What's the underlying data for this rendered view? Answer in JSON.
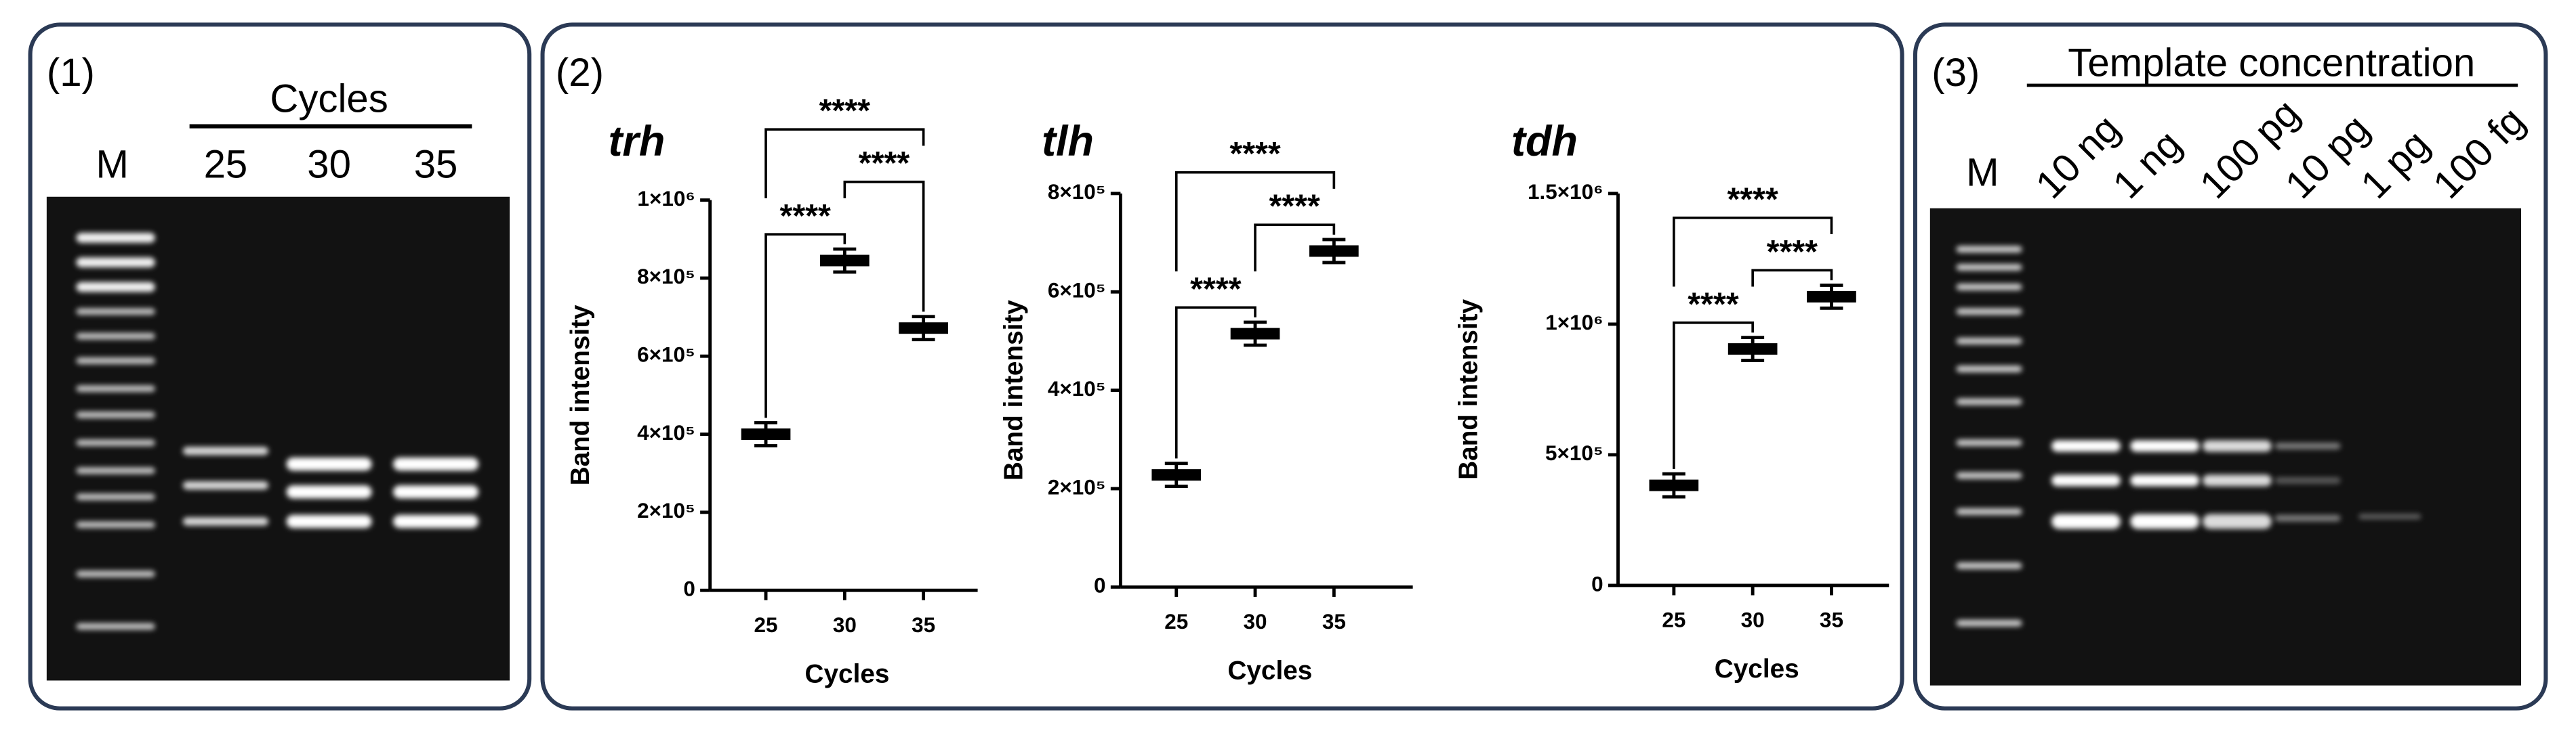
{
  "panels": [
    {
      "label": "(1)",
      "header": "Cycles",
      "lanes": [
        "M",
        "25",
        "30",
        "35"
      ]
    },
    {
      "label": "(2)"
    },
    {
      "label": "(3)",
      "header": "Template concentration",
      "lanes": [
        "M",
        "10 ng",
        "1 ng",
        "100 pg",
        "10 pg",
        "1 pg",
        "100 fg"
      ]
    }
  ],
  "chart_data": [
    {
      "type": "box",
      "title": "trh",
      "x_label": "Cycles",
      "y_label": "Band intensity",
      "categories": [
        "25",
        "30",
        "35"
      ],
      "values": [
        400000,
        845000,
        672000
      ],
      "color": "#000000",
      "ylim": [
        0,
        1000000
      ],
      "yticks": [
        0,
        {
          "value": 200000,
          "label": "2×10⁵"
        },
        {
          "value": 400000,
          "label": "4×10⁵"
        },
        {
          "value": 600000,
          "label": "6×10⁵"
        },
        {
          "value": 800000,
          "label": "8×10⁵"
        },
        {
          "value": 1000000,
          "label": "1×10⁶"
        }
      ],
      "annotations": [
        {
          "text": "****",
          "from": "25",
          "to": "30"
        },
        {
          "text": "****",
          "from": "30",
          "to": "35"
        },
        {
          "text": "****",
          "from": "25",
          "to": "35"
        }
      ]
    },
    {
      "type": "box",
      "title": "tlh",
      "x_label": "Cycles",
      "y_label": "Band intensity",
      "categories": [
        "25",
        "30",
        "35"
      ],
      "values": [
        228000,
        515000,
        683000
      ],
      "color": "#000000",
      "ylim": [
        0,
        800000
      ],
      "yticks": [
        0,
        {
          "value": 200000,
          "label": "2×10⁵"
        },
        {
          "value": 400000,
          "label": "4×10⁵"
        },
        {
          "value": 600000,
          "label": "6×10⁵"
        },
        {
          "value": 800000,
          "label": "8×10⁵"
        }
      ],
      "annotations": [
        {
          "text": "****",
          "from": "25",
          "to": "30"
        },
        {
          "text": "****",
          "from": "30",
          "to": "35"
        },
        {
          "text": "****",
          "from": "25",
          "to": "35"
        }
      ]
    },
    {
      "type": "box",
      "title": "tdh",
      "x_label": "Cycles",
      "y_label": "Band intensity",
      "categories": [
        "25",
        "30",
        "35"
      ],
      "values": [
        383000,
        905000,
        1105000
      ],
      "color": "#000000",
      "ylim": [
        0,
        1500000
      ],
      "yticks": [
        0,
        {
          "value": 500000,
          "label": "5×10⁵"
        },
        {
          "value": 1000000,
          "label": "1×10⁶"
        },
        {
          "value": 1500000,
          "label": "1.5×10⁶"
        }
      ],
      "annotations": [
        {
          "text": "****",
          "from": "25",
          "to": "30"
        },
        {
          "text": "****",
          "from": "30",
          "to": "35"
        },
        {
          "text": "****",
          "from": "25",
          "to": "35"
        }
      ]
    }
  ]
}
